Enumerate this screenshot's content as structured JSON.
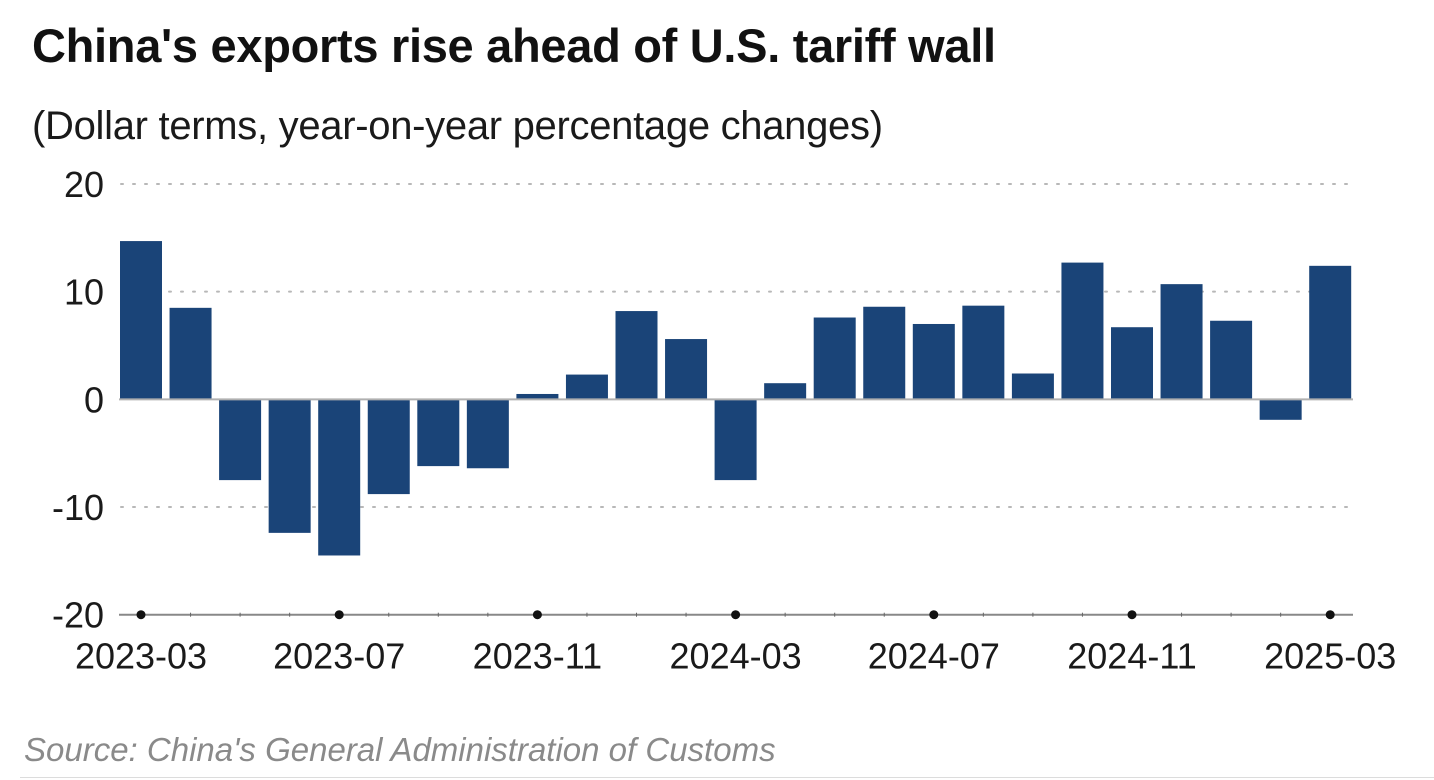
{
  "title": "China's exports rise ahead of U.S. tariff wall",
  "subtitle": "(Dollar terms, year-on-year percentage changes)",
  "source": "Source: China's General Administration of Customs",
  "colors": {
    "bar": "#1a4478",
    "grid": "#b8b8b8",
    "zero_line": "#b0b0b0",
    "axis": "#333333"
  },
  "chart_data": {
    "type": "bar",
    "title": "China's exports rise ahead of U.S. tariff wall",
    "subtitle": "(Dollar terms, year-on-year percentage changes)",
    "xlabel": "",
    "ylabel": "",
    "ylim": [
      -20,
      20
    ],
    "yticks": [
      20,
      10,
      0,
      -10,
      -20
    ],
    "ytick_labels": [
      "20",
      "10",
      "0",
      "-10",
      "-20"
    ],
    "grid": true,
    "legend": "none",
    "categories": [
      "2023-03",
      "2023-04",
      "2023-05",
      "2023-06",
      "2023-07",
      "2023-08",
      "2023-09",
      "2023-10",
      "2023-11",
      "2023-12",
      "2024-01",
      "2024-02",
      "2024-03",
      "2024-04",
      "2024-05",
      "2024-06",
      "2024-07",
      "2024-08",
      "2024-09",
      "2024-10",
      "2024-11",
      "2024-12",
      "2025-01",
      "2025-02",
      "2025-03"
    ],
    "values": [
      14.7,
      8.5,
      -7.5,
      -12.4,
      -14.5,
      -8.8,
      -6.2,
      -6.4,
      0.5,
      2.3,
      8.2,
      5.6,
      -7.5,
      1.5,
      7.6,
      8.6,
      7.0,
      8.7,
      2.4,
      12.7,
      6.7,
      10.7,
      7.3,
      -1.9,
      12.4
    ],
    "xtick_labels": [
      "2023-03",
      "2023-07",
      "2023-11",
      "2024-03",
      "2024-07",
      "2024-11",
      "2025-03"
    ],
    "source": "Source: China's General Administration of Customs"
  }
}
